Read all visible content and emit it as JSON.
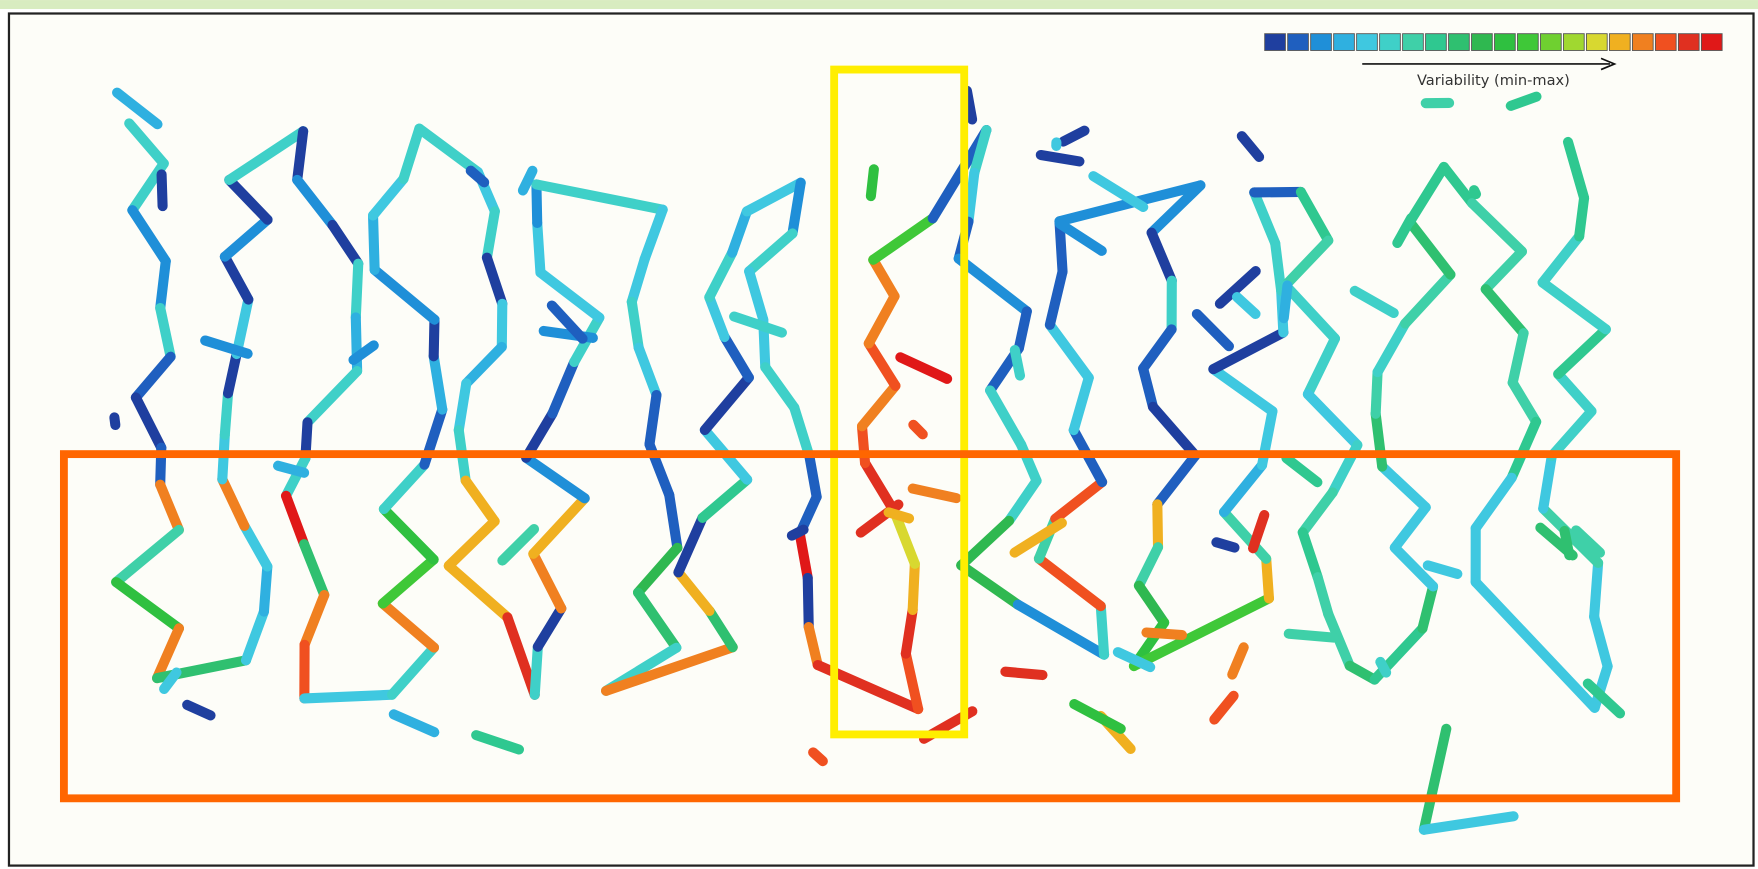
{
  "legend": {
    "colors": [
      "#1f3f9f",
      "#1f5fbf",
      "#1f8fd8",
      "#2fb0e0",
      "#3fc8e0",
      "#3fd0c8",
      "#3fd0a8",
      "#2fc890",
      "#2fc070",
      "#2fb850",
      "#2fc040",
      "#3fc838",
      "#6fd030",
      "#a0d830",
      "#d8d830",
      "#f0b020",
      "#f08020",
      "#f05020",
      "#e03020",
      "#e01818"
    ],
    "label": "Variability (min-max)"
  }
}
